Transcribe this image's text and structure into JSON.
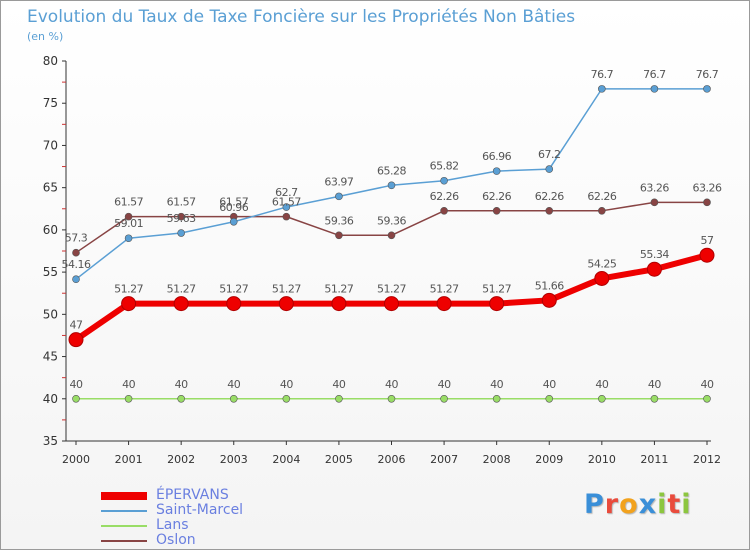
{
  "title": "Evolution du Taux de Taxe Foncière sur les Propriétés Non Bâties",
  "subtitle": "(en %)",
  "logo": {
    "text": "Proxiti",
    "colors": [
      "#3a8fd8",
      "#e94b3c",
      "#f2a21d",
      "#3a8fd8",
      "#8cc63f",
      "#e94b3c",
      "#8cc63f"
    ]
  },
  "chart_data": {
    "type": "line",
    "x": [
      "2000",
      "2001",
      "2002",
      "2003",
      "2004",
      "2005",
      "2006",
      "2007",
      "2008",
      "2009",
      "2010",
      "2011",
      "2012"
    ],
    "ylim": [
      35,
      80
    ],
    "yticks": [
      35,
      40,
      45,
      50,
      55,
      60,
      65,
      70,
      75,
      80
    ],
    "grid": false,
    "series": [
      {
        "name": "ÉPERVANS",
        "color": "#ee0000",
        "width": 6,
        "marker": 7,
        "values": [
          47,
          51.27,
          51.27,
          51.27,
          51.27,
          51.27,
          51.27,
          51.27,
          51.27,
          51.66,
          54.25,
          55.34,
          57
        ],
        "labels": [
          "47",
          "51.27",
          "51.27",
          "51.27",
          "51.27",
          "51.27",
          "51.27",
          "51.27",
          "51.27",
          "51.66",
          "54.25",
          "55.34",
          "57"
        ]
      },
      {
        "name": "Saint-Marcel",
        "color": "#5a9fd4",
        "width": 1.5,
        "marker": 3.5,
        "values": [
          54.16,
          59.01,
          59.63,
          60.96,
          62.7,
          63.97,
          65.28,
          65.82,
          66.96,
          67.2,
          76.7,
          76.7,
          76.7
        ],
        "labels": [
          "54.16",
          "59.01",
          "59.63",
          "60.96",
          "62.7",
          "63.97",
          "65.28",
          "65.82",
          "66.96",
          "67.2",
          "76.7",
          "76.7",
          "76.7"
        ]
      },
      {
        "name": "Lans",
        "color": "#99dd66",
        "width": 1.5,
        "marker": 3.5,
        "values": [
          40,
          40,
          40,
          40,
          40,
          40,
          40,
          40,
          40,
          40,
          40,
          40,
          40
        ],
        "labels": [
          "40",
          "40",
          "40",
          "40",
          "40",
          "40",
          "40",
          "40",
          "40",
          "40",
          "40",
          "40",
          "40"
        ]
      },
      {
        "name": "Oslon",
        "color": "#884444",
        "width": 1.5,
        "marker": 3.5,
        "values": [
          57.3,
          61.57,
          61.57,
          61.57,
          61.57,
          59.36,
          59.36,
          62.26,
          62.26,
          62.26,
          62.26,
          63.26,
          63.26
        ],
        "labels": [
          "57.3",
          "61.57",
          "61.57",
          "61.57",
          "61.57",
          "59.36",
          "59.36",
          "62.26",
          "62.26",
          "62.26",
          "62.26",
          "63.26",
          "63.26"
        ]
      }
    ]
  }
}
